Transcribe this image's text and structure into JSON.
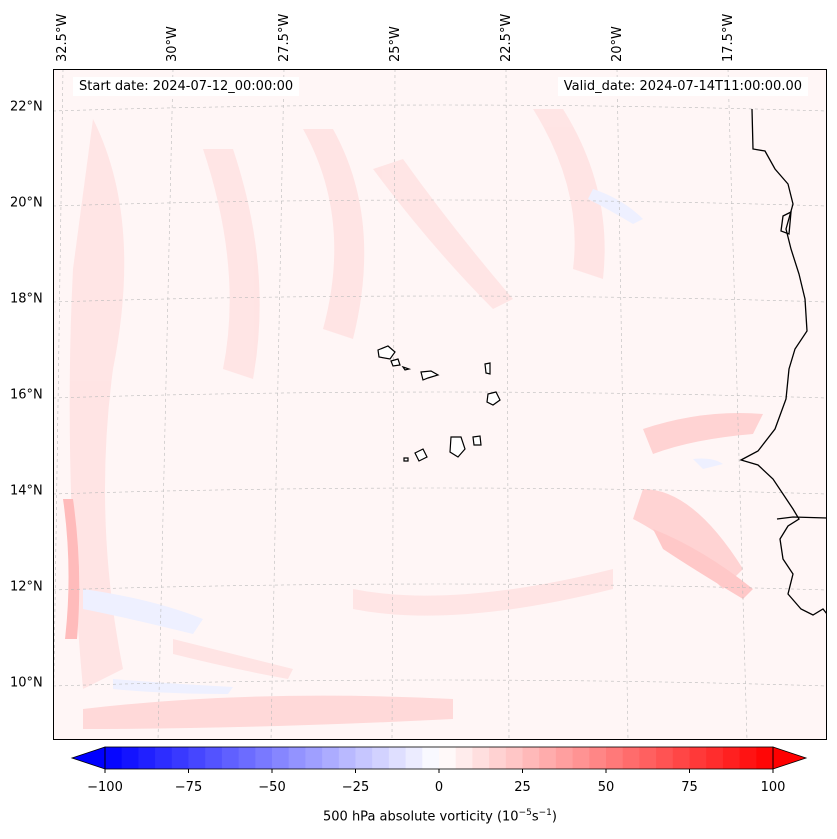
{
  "header": {
    "start_date": "Start date: 2024-07-12_00:00:00",
    "valid_date": "Valid_date: 2024-07-14T11:00:00.00"
  },
  "lon_labels": [
    "32.5°W",
    "30°W",
    "27.5°W",
    "25°W",
    "22.5°W",
    "20°W",
    "17.5°W"
  ],
  "lat_labels": [
    "22°N",
    "20°N",
    "18°N",
    "16°N",
    "14°N",
    "12°N",
    "10°N"
  ],
  "colorbar": {
    "ticks": [
      "−100",
      "−75",
      "−50",
      "−25",
      "0",
      "25",
      "50",
      "75",
      "100"
    ],
    "label_main": "500 hPa absolute vorticity (10",
    "exp1": "−5",
    "mid": "s",
    "exp2": "−1",
    "label_end": ")",
    "min": -100,
    "max": 100,
    "step": 5,
    "colors": {
      "negative": "#0000ff",
      "zero": "#ffffff",
      "positive": "#ff0000"
    }
  }
}
